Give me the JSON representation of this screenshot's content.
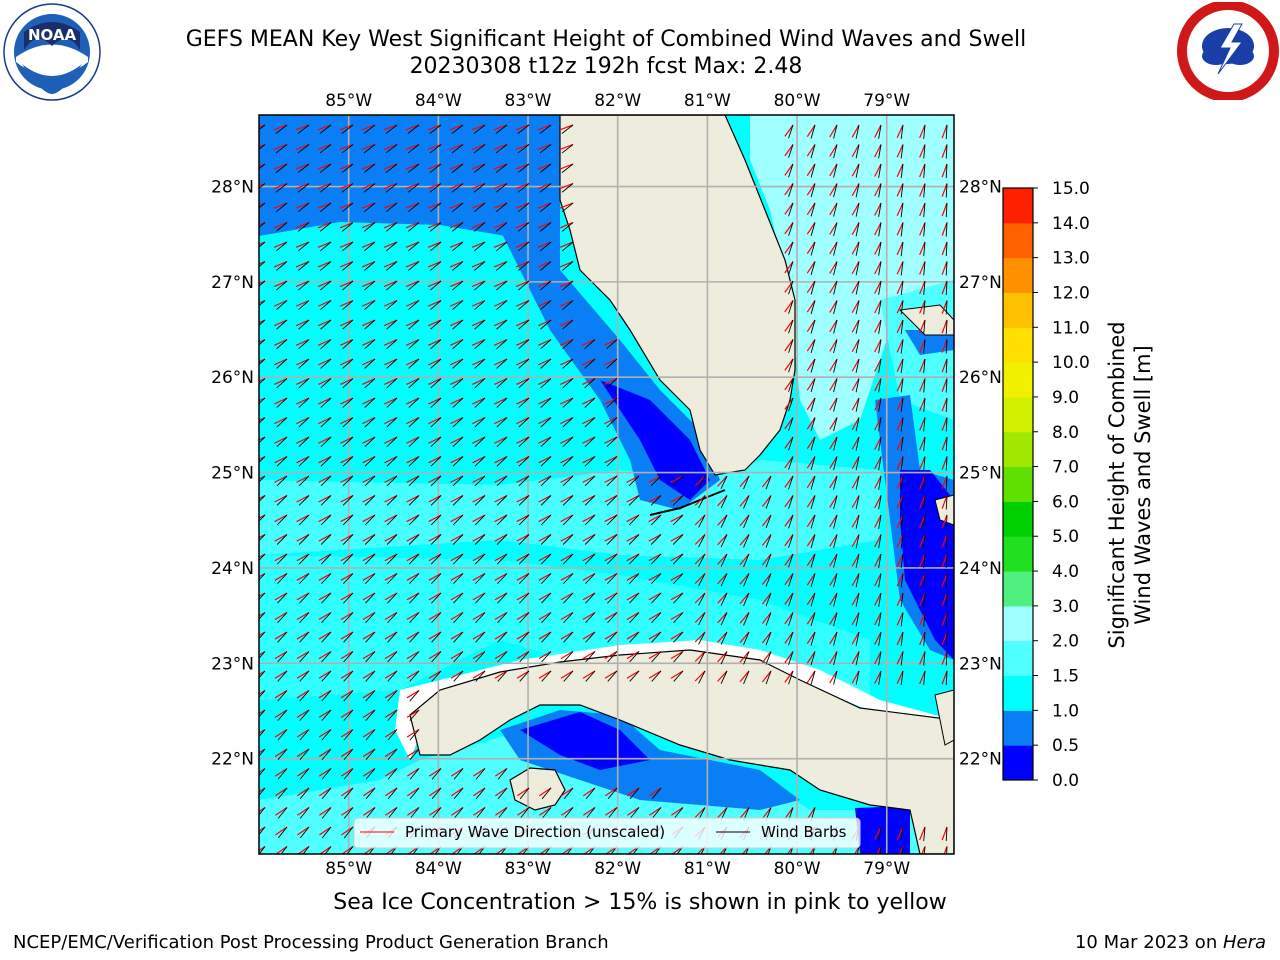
{
  "title_line1": "GEFS MEAN Key West Significant Height of Combined Wind Waves and Swell",
  "title_line2": "20230308 t12z 192h fcst   Max: 2.48",
  "map": {
    "lon_ticks": [
      "85°W",
      "84°W",
      "83°W",
      "82°W",
      "81°W",
      "80°W",
      "79°W"
    ],
    "lat_ticks": [
      "28°N",
      "27°N",
      "26°N",
      "25°N",
      "24°N",
      "23°N",
      "22°N"
    ],
    "lon_values": [
      -85,
      -84,
      -83,
      -82,
      -81,
      -80,
      -79
    ],
    "lat_values": [
      28,
      27,
      26,
      25,
      24,
      23,
      22
    ],
    "extent": {
      "lon_min": -86.0,
      "lon_max": -78.25,
      "lat_min": 21.0,
      "lat_max": 28.75
    },
    "land_color": "#eeecdc",
    "grid_color": "#b0b0b0"
  },
  "legend": {
    "wave_dir_label": "Primary Wave Direction (unscaled)",
    "wind_barb_label": "Wind Barbs",
    "wave_dir_color": "#ff0000",
    "wind_barb_color": "#000000"
  },
  "colorbar": {
    "title_line1": "Significant Height of Combined",
    "title_line2": "Wind Waves and Swell [m]",
    "levels": [
      "0.0",
      "0.5",
      "1.0",
      "1.5",
      "2.0",
      "3.0",
      "4.0",
      "5.0",
      "6.0",
      "7.0",
      "8.0",
      "9.0",
      "10.0",
      "11.0",
      "12.0",
      "13.0",
      "14.0",
      "15.0"
    ],
    "colors": [
      "#0000ff",
      "#0a7ff5",
      "#00ffff",
      "#50ffff",
      "#a0ffff",
      "#50f080",
      "#20e020",
      "#00d000",
      "#60e000",
      "#a0e800",
      "#d0f000",
      "#f0f000",
      "#ffe000",
      "#ffc000",
      "#ff9000",
      "#ff6000",
      "#ff2000"
    ]
  },
  "subnote": "Sea Ice Concentration > 15% is shown in pink to yellow",
  "footer_left": "NCEP/EMC/Verification Post Processing Product Generation Branch",
  "footer_right_prefix": "10 Mar 2023 on ",
  "footer_right_host": "Hera",
  "logos": {
    "noaa_text": "NOAA"
  }
}
